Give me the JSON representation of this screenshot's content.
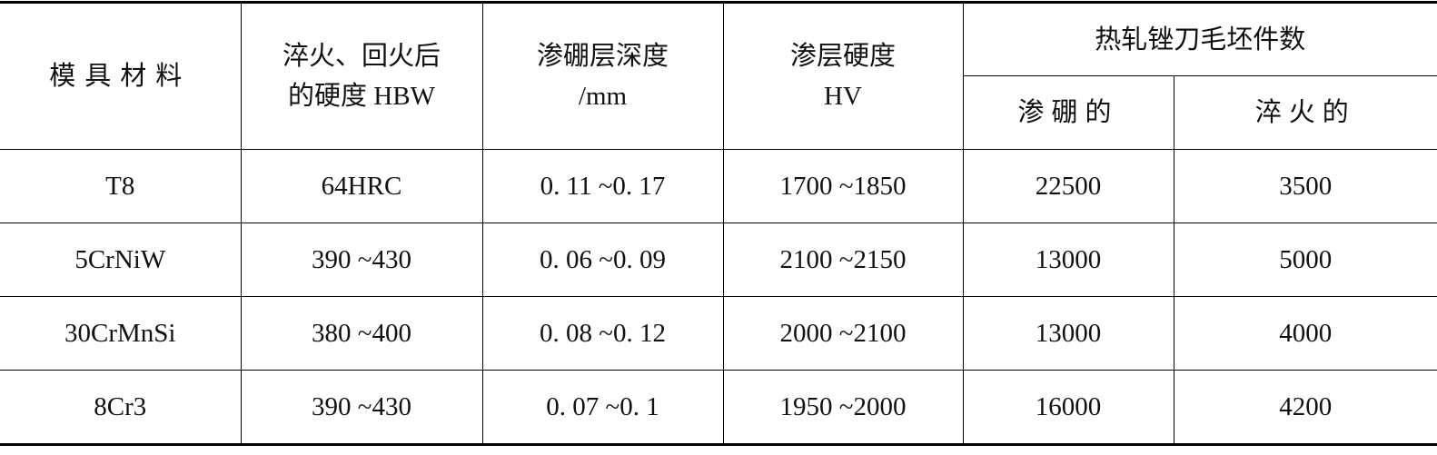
{
  "table": {
    "header_rows": [
      [
        "模具材料",
        "淬火、回火后\n的硬度 HBW",
        "渗硼层深度\n/mm",
        "渗层硬度\nHV",
        "热轧锉刀毛坯件数"
      ],
      [
        "渗硼的",
        "淬火的"
      ]
    ],
    "rows": [
      [
        "T8",
        "64HRC",
        "0. 11 ~0. 17",
        "1700 ~1850",
        "22500",
        "3500"
      ],
      [
        "5CrNiW",
        "390 ~430",
        "0. 06 ~0. 09",
        "2100 ~2150",
        "13000",
        "5000"
      ],
      [
        "30CrMnSi",
        "380 ~400",
        "0. 08 ~0. 12",
        "2000 ~2100",
        "13000",
        "4000"
      ],
      [
        "8Cr3",
        "390 ~430",
        "0. 07 ~0. 1",
        "1950 ~2000",
        "16000",
        "4200"
      ]
    ]
  }
}
